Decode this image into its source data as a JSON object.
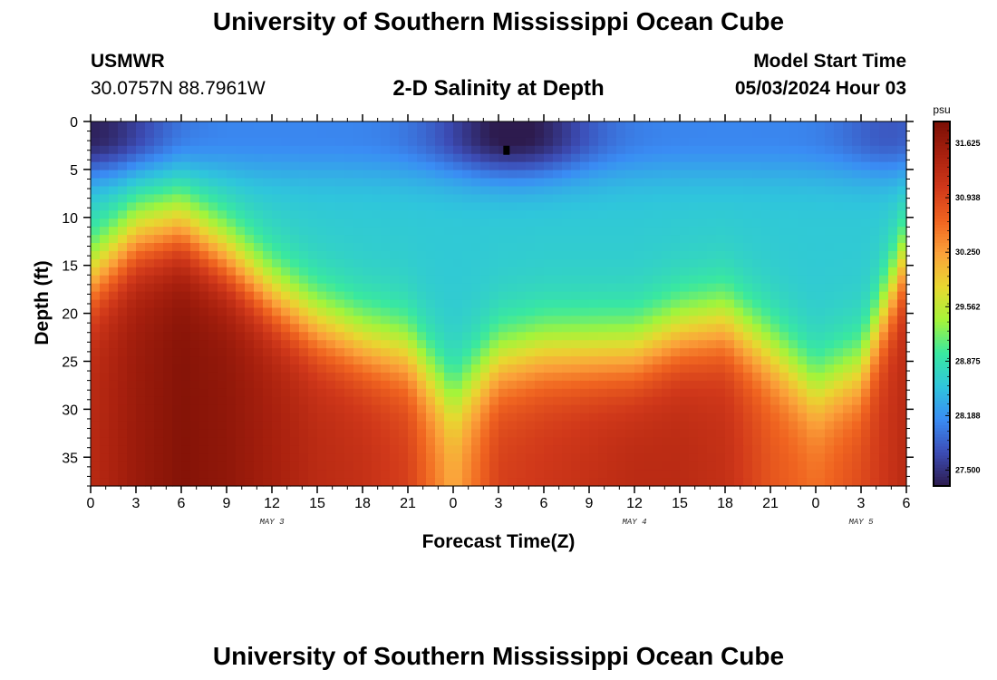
{
  "header": {
    "title": "University of Southern Mississippi Ocean Cube",
    "footer_title": "University of Southern Mississippi Ocean Cube",
    "station": "USMWR",
    "coordinates": "30.0757N  88.7961W",
    "subtitle": "2-D Salinity at Depth",
    "model_start_label": "Model Start Time",
    "model_start_value": "05/03/2024 Hour 03"
  },
  "chart_data": {
    "type": "heatmap",
    "title": "2-D Salinity at Depth",
    "xlabel": "Forecast Time(Z)",
    "ylabel": "Depth (ft)",
    "x_tick_labels": [
      "0",
      "3",
      "6",
      "9",
      "12",
      "15",
      "18",
      "21",
      "0",
      "3",
      "6",
      "9",
      "12",
      "15",
      "18",
      "21",
      "0",
      "3",
      "6"
    ],
    "x_hours_range": [
      0,
      54
    ],
    "date_labels": [
      {
        "label": "MAY 3",
        "hour": 12
      },
      {
        "label": "MAY 4",
        "hour": 36
      },
      {
        "label": "MAY 5",
        "hour": 51
      }
    ],
    "y_ticks": [
      0,
      5,
      10,
      15,
      20,
      25,
      30,
      35
    ],
    "ylim": [
      0,
      38
    ],
    "y_inverted": true,
    "colorbar": {
      "unit": "psu",
      "labels": [
        "31.625",
        "30.938",
        "30.250",
        "29.562",
        "28.875",
        "28.188",
        "27.500"
      ],
      "range": [
        27.3,
        31.9
      ],
      "colors": [
        "#2d1b4e",
        "#3c4cb5",
        "#3a8cf4",
        "#2fc5dc",
        "#39e8a0",
        "#a4f43a",
        "#e8d830",
        "#fba33a",
        "#f06420",
        "#d0381a",
        "#a8200e",
        "#7a0f05"
      ]
    },
    "marker": {
      "hour": 27.5,
      "depth": 3
    },
    "surface_layer": {
      "description_values_psu": "fresher water (~27.4-28.2) from 0 to ~8 ft, minimum near hour 24-30",
      "hours": [
        0,
        3,
        6,
        9,
        12,
        15,
        18,
        21,
        24,
        27,
        30,
        33,
        36,
        39,
        42,
        45,
        48,
        51,
        54
      ],
      "halocline_depth_ft": [
        16,
        12,
        11,
        14,
        18,
        21,
        23,
        24,
        29,
        25,
        24,
        24,
        24,
        22,
        21,
        24,
        28,
        26,
        14
      ],
      "bottom_salinity_psu": [
        31.3,
        31.6,
        31.8,
        31.7,
        31.5,
        31.3,
        31.2,
        31.0,
        30.2,
        31.0,
        31.1,
        31.2,
        31.3,
        31.3,
        31.2,
        30.8,
        30.6,
        30.9,
        31.3
      ]
    }
  }
}
